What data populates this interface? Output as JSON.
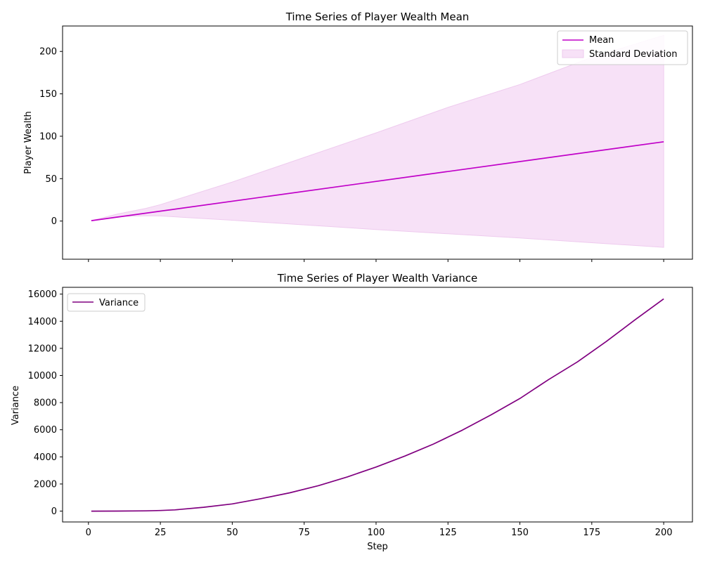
{
  "chart_data": [
    {
      "type": "line",
      "title": "Time Series of Player Wealth Mean",
      "xlabel": "",
      "ylabel": "Player Wealth",
      "xlim": [
        -9,
        210
      ],
      "ylim": [
        -45,
        230
      ],
      "x_ticks": [
        0,
        25,
        50,
        75,
        100,
        125,
        150,
        175,
        200
      ],
      "y_ticks": [
        0,
        50,
        100,
        150,
        200
      ],
      "y_tick_labels": [
        "0",
        "50",
        "100",
        "150",
        "200"
      ],
      "show_x_tick_labels": false,
      "series": [
        {
          "name": "Mean",
          "color": "#c000c8",
          "x": [
            1,
            200
          ],
          "y": [
            0.5,
            93.5
          ]
        }
      ],
      "band": {
        "name": "Standard Deviation",
        "fill_color": "#f7e1f7",
        "edge_color": "#eecbee",
        "x": [
          1,
          10,
          20,
          25,
          50,
          75,
          100,
          125,
          150,
          175,
          200
        ],
        "upper": [
          0.5,
          8.2,
          15,
          19.4,
          46,
          75,
          104,
          134,
          161,
          193,
          219
        ],
        "lower": [
          0.5,
          5.2,
          6.3,
          6,
          1,
          -4.5,
          -10,
          -15,
          -20,
          -25.5,
          -31
        ]
      },
      "legend": {
        "position": "top-right",
        "entries": [
          "Mean",
          "Standard Deviation"
        ]
      }
    },
    {
      "type": "line",
      "title": "Time Series of Player Wealth Variance",
      "xlabel": "Step",
      "ylabel": "Variance",
      "xlim": [
        -9,
        210
      ],
      "ylim": [
        -800,
        16500
      ],
      "x_ticks": [
        0,
        25,
        50,
        75,
        100,
        125,
        150,
        175,
        200
      ],
      "x_tick_labels": [
        "0",
        "25",
        "50",
        "75",
        "100",
        "125",
        "150",
        "175",
        "200"
      ],
      "y_ticks": [
        0,
        2000,
        4000,
        6000,
        8000,
        10000,
        12000,
        14000,
        16000
      ],
      "y_tick_labels": [
        "0",
        "2000",
        "4000",
        "6000",
        "8000",
        "10000",
        "12000",
        "14000",
        "16000"
      ],
      "series": [
        {
          "name": "Variance",
          "color": "#800080",
          "x": [
            1,
            10,
            20,
            25,
            30,
            40,
            50,
            60,
            70,
            80,
            90,
            100,
            110,
            120,
            130,
            140,
            150,
            160,
            170,
            180,
            190,
            200
          ],
          "y": [
            0,
            2,
            20,
            45,
            90,
            280,
            530,
            920,
            1350,
            1880,
            2520,
            3250,
            4060,
            4950,
            5970,
            7100,
            8300,
            9700,
            11000,
            12500,
            14100,
            15650
          ]
        }
      ],
      "legend": {
        "position": "top-left",
        "entries": [
          "Variance"
        ]
      }
    }
  ]
}
